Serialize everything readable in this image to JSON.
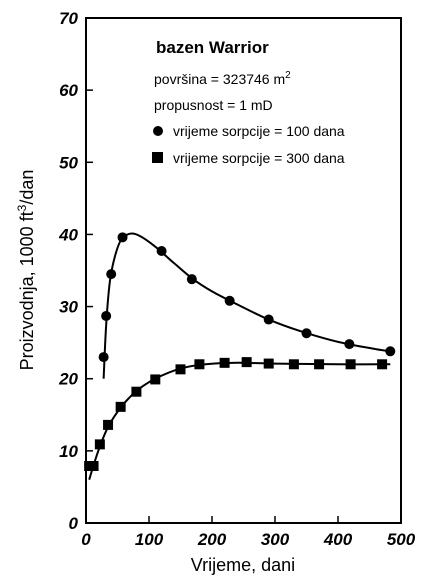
{
  "chart_data": {
    "type": "scatter",
    "title": "bazen Warrior",
    "annotations": {
      "area_label": "površina = 323746 m",
      "area_exponent": "2",
      "permeability": "propusnost = 1 mD"
    },
    "xlabel": "Vrijeme, dani",
    "ylabel_main": "Proizvodnja, 1000 ft",
    "ylabel_exponent": "3",
    "ylabel_tail": "/dan",
    "xlim": [
      0,
      500
    ],
    "ylim": [
      0,
      70
    ],
    "x_ticks": [
      "0",
      "100",
      "200",
      "300",
      "400",
      "500"
    ],
    "y_ticks": [
      "0",
      "10",
      "20",
      "30",
      "40",
      "50",
      "60",
      "70"
    ],
    "legend_position": "top-right",
    "series": [
      {
        "name": "vrijeme sorpcije = 100 dana",
        "marker": "circle",
        "points": [
          {
            "x": 28,
            "y": 23.0
          },
          {
            "x": 32,
            "y": 28.7
          },
          {
            "x": 40,
            "y": 34.5
          },
          {
            "x": 58,
            "y": 39.6
          },
          {
            "x": 120,
            "y": 37.7
          },
          {
            "x": 168,
            "y": 33.8
          },
          {
            "x": 228,
            "y": 30.8
          },
          {
            "x": 290,
            "y": 28.2
          },
          {
            "x": 350,
            "y": 26.3
          },
          {
            "x": 418,
            "y": 24.8
          },
          {
            "x": 483,
            "y": 23.8
          }
        ],
        "curve": [
          {
            "x": 28,
            "y": 20.0
          },
          {
            "x": 32,
            "y": 27.5
          },
          {
            "x": 38,
            "y": 33.5
          },
          {
            "x": 46,
            "y": 37.0
          },
          {
            "x": 56,
            "y": 39.3
          },
          {
            "x": 70,
            "y": 40.1
          },
          {
            "x": 85,
            "y": 39.8
          },
          {
            "x": 110,
            "y": 38.3
          },
          {
            "x": 140,
            "y": 36.0
          },
          {
            "x": 170,
            "y": 33.8
          },
          {
            "x": 200,
            "y": 32.1
          },
          {
            "x": 240,
            "y": 30.3
          },
          {
            "x": 290,
            "y": 28.2
          },
          {
            "x": 340,
            "y": 26.6
          },
          {
            "x": 400,
            "y": 25.1
          },
          {
            "x": 460,
            "y": 24.1
          },
          {
            "x": 483,
            "y": 23.8
          }
        ]
      },
      {
        "name": "vrijeme sorpcije = 300 dana",
        "marker": "square",
        "points": [
          {
            "x": 5,
            "y": 7.9
          },
          {
            "x": 12,
            "y": 7.9
          },
          {
            "x": 22,
            "y": 10.9
          },
          {
            "x": 35,
            "y": 13.6
          },
          {
            "x": 55,
            "y": 16.1
          },
          {
            "x": 80,
            "y": 18.2
          },
          {
            "x": 110,
            "y": 19.9
          },
          {
            "x": 150,
            "y": 21.3
          },
          {
            "x": 180,
            "y": 22.0
          },
          {
            "x": 220,
            "y": 22.2
          },
          {
            "x": 255,
            "y": 22.3
          },
          {
            "x": 290,
            "y": 22.1
          },
          {
            "x": 330,
            "y": 22.0
          },
          {
            "x": 370,
            "y": 22.0
          },
          {
            "x": 420,
            "y": 22.0
          },
          {
            "x": 470,
            "y": 22.0
          }
        ],
        "curve": [
          {
            "x": 5,
            "y": 6.0
          },
          {
            "x": 12,
            "y": 8.0
          },
          {
            "x": 22,
            "y": 10.6
          },
          {
            "x": 35,
            "y": 13.3
          },
          {
            "x": 55,
            "y": 16.0
          },
          {
            "x": 80,
            "y": 18.3
          },
          {
            "x": 110,
            "y": 20.0
          },
          {
            "x": 150,
            "y": 21.4
          },
          {
            "x": 190,
            "y": 22.0
          },
          {
            "x": 240,
            "y": 22.2
          },
          {
            "x": 300,
            "y": 22.1
          },
          {
            "x": 400,
            "y": 22.0
          },
          {
            "x": 483,
            "y": 22.0
          }
        ]
      }
    ]
  }
}
